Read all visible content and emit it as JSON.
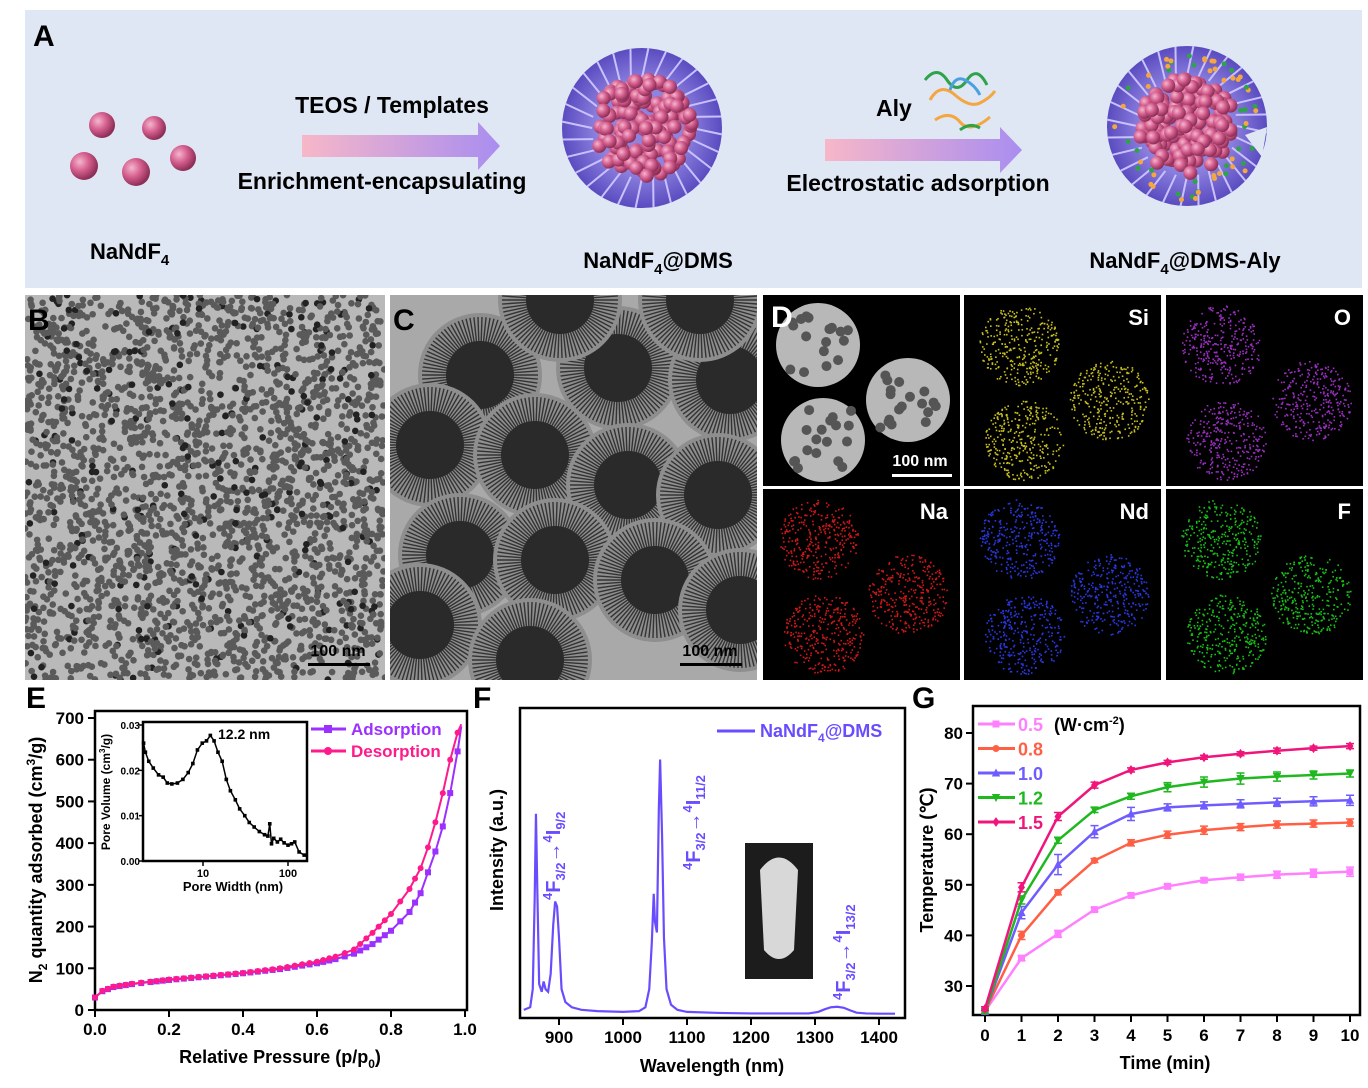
{
  "panels": {
    "A": {
      "label": "A",
      "step1": {
        "above": "TEOS / Templates",
        "below": "Enrichment-encapsulating"
      },
      "step2": {
        "above": "Aly",
        "below": "Electrostatic adsorption"
      },
      "products": [
        {
          "main": "NaNdF",
          "sub": "4",
          "suffix": ""
        },
        {
          "main": "NaNdF",
          "sub": "4",
          "suffix": "@DMS"
        },
        {
          "main": "NaNdF",
          "sub": "4",
          "suffix": "@DMS-Aly"
        }
      ],
      "background_color": "#dfe7f4"
    },
    "B": {
      "label": "B",
      "scale_bar": "100 nm"
    },
    "C": {
      "label": "C",
      "scale_bar": "100 nm"
    },
    "D": {
      "label": "D",
      "scale_bar": "100 nm",
      "maps": [
        {
          "element": "",
          "color": "#e0e0e0"
        },
        {
          "element": "Si",
          "color": "#c8c020"
        },
        {
          "element": "O",
          "color": "#9b2fc0"
        },
        {
          "element": "Na",
          "color": "#d01818"
        },
        {
          "element": "Nd",
          "color": "#2838e0"
        },
        {
          "element": "F",
          "color": "#18c018"
        }
      ]
    },
    "E": {
      "label": "E"
    },
    "F": {
      "label": "F"
    },
    "G": {
      "label": "G"
    }
  },
  "chart_data": [
    {
      "panel": "E",
      "type": "line",
      "xlabel": {
        "main": "Relative Pressure (p/p",
        "sub": "0",
        "tail": ")"
      },
      "ylabel": {
        "pre": "N",
        "sub": "2",
        "main": " quantity adsorbed (cm",
        "sup": "3",
        "tail": "/g)"
      },
      "xlim": [
        0.0,
        1.0
      ],
      "ylim": [
        0,
        700
      ],
      "xticks": [
        "0.0",
        "0.2",
        "0.4",
        "0.6",
        "0.8",
        "1.0"
      ],
      "yticks": [
        "0",
        "100",
        "200",
        "300",
        "400",
        "500",
        "600",
        "700"
      ],
      "legend_position": "top-right",
      "series": [
        {
          "name": "Adsorption",
          "color": "#9b30ff",
          "marker": "square",
          "x": [
            0.0,
            0.02,
            0.05,
            0.1,
            0.15,
            0.2,
            0.3,
            0.4,
            0.5,
            0.6,
            0.65,
            0.7,
            0.75,
            0.8,
            0.85,
            0.88,
            0.9,
            0.92,
            0.94,
            0.96,
            0.98,
            0.99
          ],
          "y": [
            30,
            45,
            55,
            62,
            67,
            72,
            80,
            88,
            98,
            112,
            122,
            135,
            158,
            190,
            235,
            280,
            330,
            380,
            440,
            520,
            620,
            680
          ]
        },
        {
          "name": "Desorption",
          "color": "#ff1a8c",
          "marker": "circle",
          "x": [
            0.0,
            0.02,
            0.05,
            0.1,
            0.15,
            0.2,
            0.3,
            0.4,
            0.5,
            0.6,
            0.65,
            0.7,
            0.75,
            0.8,
            0.85,
            0.88,
            0.9,
            0.92,
            0.94,
            0.96,
            0.98,
            0.99
          ],
          "y": [
            30,
            46,
            56,
            63,
            68,
            73,
            81,
            89,
            100,
            116,
            128,
            145,
            185,
            230,
            290,
            340,
            390,
            450,
            520,
            600,
            665,
            685
          ]
        }
      ],
      "inset": {
        "type": "line",
        "xlabel": "Pore Width (nm)",
        "ylabel": {
          "main": "Pore Volume (cm",
          "sup": "3",
          "tail": "/g)"
        },
        "xscale": "log",
        "xlim": [
          2,
          160
        ],
        "ylim": [
          0,
          0.03
        ],
        "xticks": [
          "10",
          "100"
        ],
        "yticks": [
          "0.00",
          "0.01",
          "0.02",
          "0.03"
        ],
        "annotation": "12.2 nm",
        "x": [
          2.0,
          2.1,
          2.3,
          2.6,
          3.0,
          3.4,
          3.8,
          4.3,
          5.0,
          5.8,
          6.7,
          7.6,
          8.6,
          9.8,
          11.0,
          12.2,
          13.5,
          15.0,
          16.8,
          18.8,
          21,
          24,
          27,
          31,
          35,
          40,
          46,
          53,
          58,
          61,
          64,
          68,
          75,
          82,
          90,
          100,
          110,
          120,
          135,
          155
        ],
        "y": [
          0.026,
          0.024,
          0.022,
          0.0205,
          0.019,
          0.0185,
          0.0172,
          0.017,
          0.0172,
          0.018,
          0.0195,
          0.0215,
          0.0245,
          0.026,
          0.0265,
          0.0277,
          0.0265,
          0.024,
          0.022,
          0.018,
          0.0155,
          0.0135,
          0.0115,
          0.01,
          0.0085,
          0.0075,
          0.0065,
          0.0058,
          0.0055,
          0.0082,
          0.0038,
          0.005,
          0.0042,
          0.0048,
          0.004,
          0.0035,
          0.0038,
          0.0042,
          0.002,
          0.0013
        ]
      }
    },
    {
      "panel": "F",
      "type": "line",
      "xlabel": "Wavelength (nm)",
      "ylabel": "Intensity (a.u.)",
      "xlim": [
        840,
        1430
      ],
      "ylim": [
        0,
        1.05
      ],
      "xticks": [
        "900",
        "1000",
        "1100",
        "1200",
        "1300",
        "1400"
      ],
      "legend_position": "top-right",
      "series": [
        {
          "name": {
            "main": "NaNdF",
            "sub": "4",
            "suffix": "@DMS"
          },
          "color": "#6a4cff",
          "x": [
            845,
            855,
            859,
            862,
            864,
            866,
            869,
            873,
            876,
            879,
            883,
            887,
            891,
            894,
            897,
            900,
            904,
            910,
            920,
            935,
            960,
            1000,
            1025,
            1035,
            1041,
            1045,
            1048,
            1050,
            1053,
            1056,
            1058,
            1061,
            1064,
            1068,
            1075,
            1085,
            1100,
            1150,
            1200,
            1250,
            1290,
            1305,
            1315,
            1325,
            1335,
            1345,
            1355,
            1365,
            1380,
            1400,
            1425
          ],
          "y": [
            0.02,
            0.03,
            0.1,
            0.45,
            0.78,
            0.5,
            0.12,
            0.09,
            0.13,
            0.1,
            0.09,
            0.16,
            0.35,
            0.44,
            0.42,
            0.3,
            0.1,
            0.05,
            0.03,
            0.02,
            0.015,
            0.012,
            0.015,
            0.03,
            0.1,
            0.28,
            0.47,
            0.36,
            0.32,
            0.8,
            0.99,
            0.7,
            0.3,
            0.1,
            0.04,
            0.02,
            0.012,
            0.008,
            0.006,
            0.006,
            0.006,
            0.012,
            0.022,
            0.03,
            0.032,
            0.028,
            0.018,
            0.009,
            0.006,
            0.005,
            0.005
          ]
        }
      ],
      "annotations": [
        {
          "pre": "4",
          "main": "F",
          "sub": "3/2",
          "arrow": "→",
          "pre2": "4",
          "main2": "I",
          "sub2": "9/2"
        },
        {
          "pre": "4",
          "main": "F",
          "sub": "3/2",
          "arrow": "→",
          "pre2": "4",
          "main2": "I",
          "sub2": "11/2"
        },
        {
          "pre": "4",
          "main": "F",
          "sub": "3/2",
          "arrow": "→",
          "pre2": "4",
          "main2": "I",
          "sub2": "13/2"
        }
      ]
    },
    {
      "panel": "G",
      "type": "line",
      "xlabel": "Time (min)",
      "ylabel": "Temperature (℃)",
      "xlim": [
        -0.3,
        10.3
      ],
      "ylim": [
        24.3,
        85.3
      ],
      "xticks": [
        "0",
        "1",
        "2",
        "3",
        "4",
        "5",
        "6",
        "7",
        "8",
        "9",
        "10"
      ],
      "yticks": [
        "30",
        "40",
        "50",
        "60",
        "70",
        "80"
      ],
      "legend_unit": {
        "main": "(W·cm",
        "sup": "-2",
        "tail": ")"
      },
      "legend_position": "top-left",
      "x": [
        0,
        1,
        2,
        3,
        4,
        5,
        6,
        7,
        8,
        9,
        10
      ],
      "series": [
        {
          "name": "0.5",
          "color": "#ff80ff",
          "marker": "square",
          "y": [
            25,
            35.5,
            40.3,
            45.1,
            47.9,
            49.7,
            50.9,
            51.5,
            52.0,
            52.3,
            52.6
          ],
          "err": [
            0.4,
            0.5,
            0.7,
            0.4,
            0.4,
            0.4,
            0.4,
            0.6,
            0.7,
            0.8,
            0.9
          ]
        },
        {
          "name": "0.8",
          "color": "#ff5f45",
          "marker": "circle",
          "y": [
            25,
            40,
            48.5,
            54.8,
            58.3,
            59.9,
            60.8,
            61.4,
            61.9,
            62.1,
            62.3
          ],
          "err": [
            0.4,
            0.8,
            0.5,
            0.4,
            0.6,
            0.7,
            0.8,
            0.7,
            0.7,
            0.7,
            0.7
          ]
        },
        {
          "name": "1.0",
          "color": "#6f5cff",
          "marker": "triangle-up",
          "y": [
            25,
            44.5,
            54,
            60.5,
            64,
            65.3,
            65.7,
            66.0,
            66.3,
            66.5,
            66.7
          ],
          "err": [
            0.4,
            1.2,
            2.0,
            1.2,
            1.3,
            0.7,
            0.7,
            0.8,
            0.8,
            0.9,
            1.0
          ]
        },
        {
          "name": "1.2",
          "color": "#1fb81f",
          "marker": "triangle-down",
          "y": [
            25,
            47,
            58.8,
            64.8,
            67.5,
            69.3,
            70.3,
            71.0,
            71.4,
            71.7,
            72.0
          ],
          "err": [
            0.4,
            0.8,
            0.6,
            0.5,
            0.6,
            0.9,
            1.0,
            1.1,
            0.9,
            0.8,
            0.7
          ]
        },
        {
          "name": "1.5",
          "color": "#f0157a",
          "marker": "diamond",
          "y": [
            25.5,
            49.5,
            63.5,
            69.7,
            72.7,
            74.2,
            75.2,
            75.9,
            76.5,
            77.0,
            77.4
          ],
          "err": [
            0.4,
            0.9,
            0.8,
            0.6,
            0.4,
            0.4,
            0.4,
            0.4,
            0.5,
            0.4,
            0.5
          ]
        }
      ]
    }
  ]
}
